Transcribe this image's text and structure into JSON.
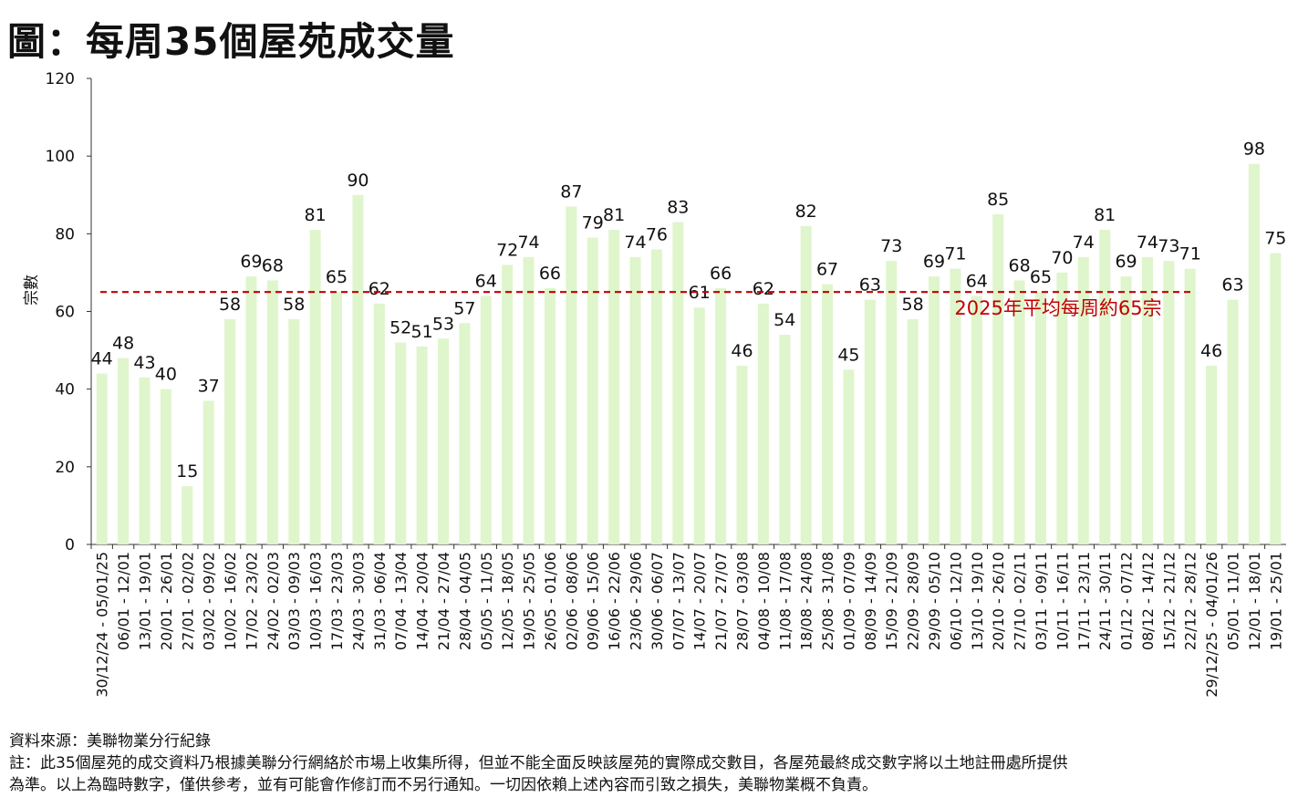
{
  "title": "圖：每周35個屋苑成交量",
  "chart_data": {
    "type": "bar",
    "title": "圖：每周35個屋苑成交量",
    "ylabel": "宗數",
    "xlabel": "",
    "ylim": [
      0,
      120
    ],
    "yticks": [
      0,
      20,
      40,
      60,
      80,
      100,
      120
    ],
    "grid": false,
    "bar_color": "#dff5cb",
    "categories": [
      "30/12/24 - 05/01/25",
      "06/01 - 12/01",
      "13/01 - 19/01",
      "20/01 - 26/01",
      "27/01 - 02/02",
      "03/02 - 09/02",
      "10/02 - 16/02",
      "17/02 - 23/02",
      "24/02 - 02/03",
      "03/03 - 09/03",
      "10/03 - 16/03",
      "17/03 - 23/03",
      "24/03 - 30/03",
      "31/03 - 06/04",
      "07/04 - 13/04",
      "14/04 - 20/04",
      "21/04 - 27/04",
      "28/04 - 04/05",
      "05/05 - 11/05",
      "12/05 - 18/05",
      "19/05 - 25/05",
      "26/05 - 01/06",
      "02/06 - 08/06",
      "09/06 - 15/06",
      "16/06 - 22/06",
      "23/06 - 29/06",
      "30/06 - 06/07",
      "07/07 - 13/07",
      "14/07 - 20/07",
      "21/07 - 27/07",
      "28/07 - 03/08",
      "04/08 - 10/08",
      "11/08 - 17/08",
      "18/08 - 24/08",
      "25/08 - 31/08",
      "01/09 - 07/09",
      "08/09 - 14/09",
      "15/09 - 21/09",
      "22/09 - 28/09",
      "29/09 - 05/10",
      "06/10 - 12/10",
      "13/10 - 19/10",
      "20/10 - 26/10",
      "27/10 - 02/11",
      "03/11 - 09/11",
      "10/11 - 16/11",
      "17/11 - 23/11",
      "24/11 - 30/11",
      "01/12 - 07/12",
      "08/12 - 14/12",
      "15/12 - 21/12",
      "22/12 - 28/12",
      "29/12/25 - 04/01/26",
      "05/01 - 11/01",
      "12/01 - 18/01",
      "19/01 - 25/01"
    ],
    "values": [
      44,
      48,
      43,
      40,
      15,
      37,
      58,
      69,
      68,
      58,
      81,
      65,
      90,
      62,
      52,
      51,
      53,
      57,
      64,
      72,
      74,
      66,
      87,
      79,
      81,
      74,
      76,
      83,
      61,
      66,
      46,
      62,
      54,
      82,
      67,
      45,
      63,
      73,
      58,
      69,
      71,
      64,
      85,
      68,
      65,
      70,
      74,
      81,
      69,
      74,
      73,
      71,
      46,
      63,
      98,
      75
    ],
    "reference_line": {
      "value": 65,
      "label": "2025年平均每周約65宗",
      "color": "#c00000",
      "style": "dashed"
    }
  },
  "footer": {
    "source": "資料來源：美聯物業分行紀錄",
    "note_line1": "註：此35個屋苑的成交資料乃根據美聯分行網絡於市場上收集所得，但並不能全面反映該屋苑的實際成交數目，各屋苑最終成交數字將以土地註冊處所提供",
    "note_line2": "為準。以上為臨時數字，僅供參考，並有可能會作修訂而不另行通知。一切因依賴上述內容而引致之損失，美聯物業概不負責。"
  }
}
